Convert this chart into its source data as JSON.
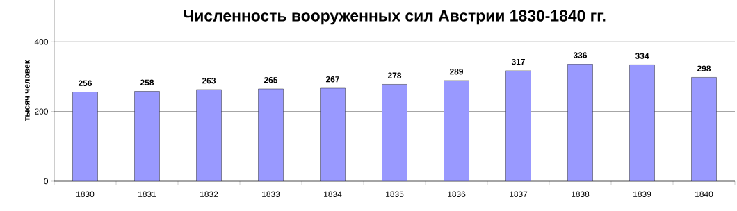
{
  "chart_data": {
    "type": "bar",
    "title": "Численность вооруженных сил Австрии 1830-1840 гг.",
    "ylabel": "тысяч человек",
    "categories": [
      "1830",
      "1831",
      "1832",
      "1833",
      "1834",
      "1835",
      "1836",
      "1837",
      "1838",
      "1839",
      "1840"
    ],
    "values": [
      256,
      258,
      263,
      265,
      267,
      278,
      289,
      317,
      336,
      334,
      298
    ],
    "color": "#9999ff",
    "ylim": [
      0,
      520
    ],
    "yticks": [
      0,
      200,
      400
    ],
    "grid": "y",
    "data_labels": true
  }
}
